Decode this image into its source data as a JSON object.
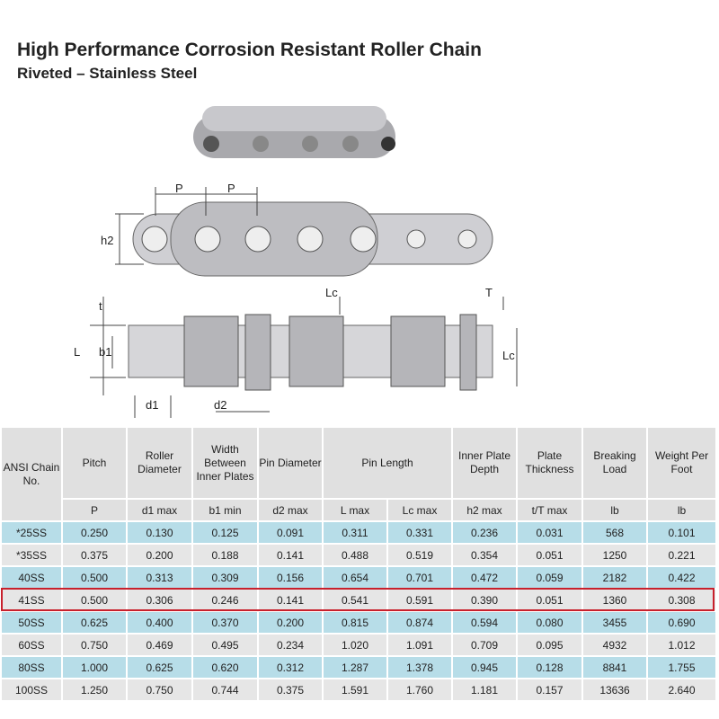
{
  "title": "High Performance Corrosion Resistant Roller Chain",
  "subtitle": "Riveted – Stainless Steel",
  "diagram_labels": {
    "p1": "P",
    "p2": "P",
    "h2": "h2",
    "t": "t",
    "L": "L",
    "b1": "b1",
    "d1": "d1",
    "d2": "d2",
    "Lc1": "Lc",
    "T": "T",
    "Lc2": "Lc"
  },
  "table": {
    "headers": [
      "ANSI Chain No.",
      "Pitch",
      "Roller Diameter",
      "Width Between Inner Plates",
      "Pin Diameter",
      "Pin Length",
      "Inner Plate Depth",
      "Plate Thickness",
      "Breaking Load",
      "Weight Per Foot"
    ],
    "subheaders": [
      "P",
      "d1 max",
      "b1 min",
      "d2 max",
      "L max",
      "Lc max",
      "h2 max",
      "t/T max",
      "lb",
      "lb"
    ],
    "rows": [
      [
        "*25SS",
        "0.250",
        "0.130",
        "0.125",
        "0.091",
        "0.311",
        "0.331",
        "0.236",
        "0.031",
        "568",
        "0.101"
      ],
      [
        "*35SS",
        "0.375",
        "0.200",
        "0.188",
        "0.141",
        "0.488",
        "0.519",
        "0.354",
        "0.051",
        "1250",
        "0.221"
      ],
      [
        "40SS",
        "0.500",
        "0.313",
        "0.309",
        "0.156",
        "0.654",
        "0.701",
        "0.472",
        "0.059",
        "2182",
        "0.422"
      ],
      [
        "41SS",
        "0.500",
        "0.306",
        "0.246",
        "0.141",
        "0.541",
        "0.591",
        "0.390",
        "0.051",
        "1360",
        "0.308"
      ],
      [
        "50SS",
        "0.625",
        "0.400",
        "0.370",
        "0.200",
        "0.815",
        "0.874",
        "0.594",
        "0.080",
        "3455",
        "0.690"
      ],
      [
        "60SS",
        "0.750",
        "0.469",
        "0.495",
        "0.234",
        "1.020",
        "1.091",
        "0.709",
        "0.095",
        "4932",
        "1.012"
      ],
      [
        "80SS",
        "1.000",
        "0.625",
        "0.620",
        "0.312",
        "1.287",
        "1.378",
        "0.945",
        "0.128",
        "8841",
        "1.755"
      ],
      [
        "100SS",
        "1.250",
        "0.750",
        "0.744",
        "0.375",
        "1.591",
        "1.760",
        "1.181",
        "0.157",
        "13636",
        "2.640"
      ]
    ],
    "highlighted_row": "41SS",
    "highlight_color": "#c8202c"
  }
}
